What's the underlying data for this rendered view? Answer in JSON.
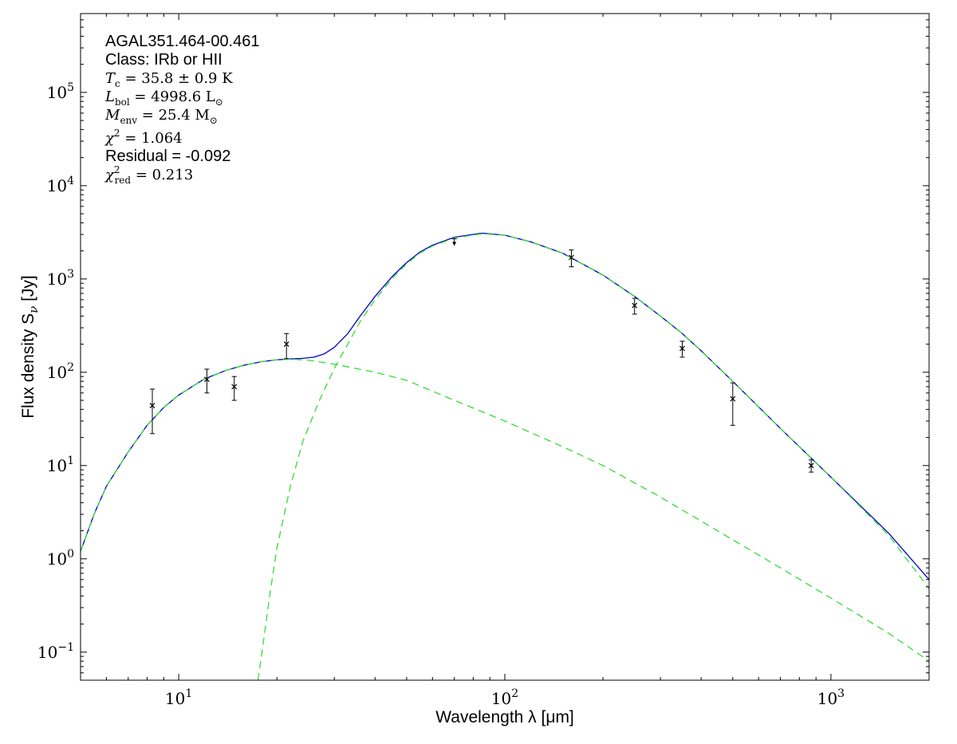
{
  "chart_data": {
    "type": "scatter",
    "xlabel": "Wavelength λ [μm]",
    "ylabel": "Flux density S",
    "ylabel_sub": "ν",
    "ylabel_unit": " [Jy]",
    "xscale": "log",
    "yscale": "log",
    "xlim": [
      5,
      2000
    ],
    "ylim": [
      0.05,
      700000
    ],
    "grid": false,
    "x_ticks": [
      {
        "value": 10,
        "base": "10",
        "exp": "1"
      },
      {
        "value": 100,
        "base": "10",
        "exp": "2"
      },
      {
        "value": 1000,
        "base": "10",
        "exp": "3"
      }
    ],
    "y_ticks": [
      {
        "value": 0.1,
        "base": "10",
        "exp": "−1"
      },
      {
        "value": 1,
        "base": "10",
        "exp": "0"
      },
      {
        "value": 10,
        "base": "10",
        "exp": "1"
      },
      {
        "value": 100,
        "base": "10",
        "exp": "2"
      },
      {
        "value": 1000,
        "base": "10",
        "exp": "3"
      },
      {
        "value": 10000,
        "base": "10",
        "exp": "4"
      },
      {
        "value": 100000,
        "base": "10",
        "exp": "5"
      }
    ],
    "annotations": [
      {
        "style": "sans",
        "text": "AGAL351.464-00.461"
      },
      {
        "style": "sans",
        "text": "Class: IRb or HII"
      },
      {
        "style": "math",
        "sym": "T",
        "sub": "c",
        "rest": " = 35.8 ± 0.9 K"
      },
      {
        "style": "math",
        "sym": "L",
        "sub": "bol",
        "rest": " = 4998.6 L",
        "tail_sub": "⊙"
      },
      {
        "style": "math",
        "sym": "M",
        "sub": "env",
        "rest": " = 25.4 M",
        "tail_sub": "⊙"
      },
      {
        "style": "math",
        "sym": "χ",
        "sup": "2",
        "rest": " = 1.064"
      },
      {
        "style": "sans",
        "text": "Residual = -0.092"
      },
      {
        "style": "math",
        "sym": "χ",
        "sup": "2",
        "sub": "red",
        "rest": " = 0.213"
      }
    ],
    "series": [
      {
        "marker": "x",
        "color": "#000000",
        "points": [
          {
            "x": 8.3,
            "y": 44,
            "ylo": 22,
            "yhi": 66
          },
          {
            "x": 12.2,
            "y": 84,
            "ylo": 60,
            "yhi": 108
          },
          {
            "x": 14.8,
            "y": 70,
            "ylo": 50,
            "yhi": 90
          },
          {
            "x": 21.4,
            "y": 200,
            "ylo": 140,
            "yhi": 260
          },
          {
            "x": 160,
            "y": 1700,
            "ylo": 1350,
            "yhi": 2050
          },
          {
            "x": 250,
            "y": 520,
            "ylo": 420,
            "yhi": 620
          },
          {
            "x": 350,
            "y": 180,
            "ylo": 145,
            "yhi": 215
          },
          {
            "x": 500,
            "y": 52,
            "ylo": 27,
            "yhi": 77
          },
          {
            "x": 870,
            "y": 10,
            "ylo": 8.5,
            "yhi": 11.5
          }
        ]
      },
      {
        "marker": "upper-limit",
        "color": "#000000",
        "points": [
          {
            "x": 70,
            "y": 2700,
            "ylo": 2350
          }
        ]
      },
      {
        "marker": "line",
        "color": "#0000cc",
        "style": "solid",
        "points": [
          {
            "x": 5,
            "y": 1.2
          },
          {
            "x": 5.5,
            "y": 3
          },
          {
            "x": 6,
            "y": 6
          },
          {
            "x": 7,
            "y": 14
          },
          {
            "x": 8,
            "y": 27
          },
          {
            "x": 9,
            "y": 42
          },
          {
            "x": 10,
            "y": 57
          },
          {
            "x": 12,
            "y": 85
          },
          {
            "x": 14,
            "y": 105
          },
          {
            "x": 16,
            "y": 120
          },
          {
            "x": 18,
            "y": 130
          },
          {
            "x": 20,
            "y": 136
          },
          {
            "x": 22,
            "y": 139
          },
          {
            "x": 24,
            "y": 141
          },
          {
            "x": 26,
            "y": 145
          },
          {
            "x": 28,
            "y": 158
          },
          {
            "x": 30,
            "y": 185
          },
          {
            "x": 33,
            "y": 260
          },
          {
            "x": 36,
            "y": 400
          },
          {
            "x": 40,
            "y": 650
          },
          {
            "x": 45,
            "y": 1050
          },
          {
            "x": 50,
            "y": 1500
          },
          {
            "x": 55,
            "y": 1950
          },
          {
            "x": 60,
            "y": 2300
          },
          {
            "x": 70,
            "y": 2800
          },
          {
            "x": 85,
            "y": 3100
          },
          {
            "x": 100,
            "y": 2950
          },
          {
            "x": 120,
            "y": 2500
          },
          {
            "x": 150,
            "y": 1900
          },
          {
            "x": 200,
            "y": 1100
          },
          {
            "x": 250,
            "y": 650
          },
          {
            "x": 300,
            "y": 400
          },
          {
            "x": 350,
            "y": 260
          },
          {
            "x": 400,
            "y": 170
          },
          {
            "x": 500,
            "y": 80
          },
          {
            "x": 700,
            "y": 25
          },
          {
            "x": 870,
            "y": 12
          },
          {
            "x": 1000,
            "y": 7.5
          },
          {
            "x": 1500,
            "y": 1.9
          },
          {
            "x": 2000,
            "y": 0.6
          }
        ]
      },
      {
        "marker": "line",
        "color": "#33dd33",
        "style": "dashed",
        "points": [
          {
            "x": 5,
            "y": 1.2
          },
          {
            "x": 5.5,
            "y": 3
          },
          {
            "x": 6,
            "y": 6
          },
          {
            "x": 7,
            "y": 14
          },
          {
            "x": 8,
            "y": 27
          },
          {
            "x": 9,
            "y": 42
          },
          {
            "x": 10,
            "y": 57
          },
          {
            "x": 12,
            "y": 85
          },
          {
            "x": 14,
            "y": 105
          },
          {
            "x": 16,
            "y": 120
          },
          {
            "x": 18,
            "y": 130
          },
          {
            "x": 20,
            "y": 136
          },
          {
            "x": 22,
            "y": 138
          },
          {
            "x": 25,
            "y": 135
          },
          {
            "x": 30,
            "y": 122
          },
          {
            "x": 40,
            "y": 100
          },
          {
            "x": 50,
            "y": 82
          },
          {
            "x": 70,
            "y": 50
          },
          {
            "x": 100,
            "y": 30
          },
          {
            "x": 150,
            "y": 16
          },
          {
            "x": 200,
            "y": 10
          },
          {
            "x": 300,
            "y": 4.6
          },
          {
            "x": 500,
            "y": 1.6
          },
          {
            "x": 700,
            "y": 0.8
          },
          {
            "x": 1000,
            "y": 0.38
          },
          {
            "x": 1500,
            "y": 0.16
          },
          {
            "x": 2000,
            "y": 0.08
          }
        ]
      },
      {
        "marker": "line",
        "color": "#33dd33",
        "style": "dashed",
        "points": [
          {
            "x": 17.5,
            "y": 0.05
          },
          {
            "x": 18,
            "y": 0.1
          },
          {
            "x": 19,
            "y": 0.4
          },
          {
            "x": 20,
            "y": 1.3
          },
          {
            "x": 22,
            "y": 6
          },
          {
            "x": 24,
            "y": 18
          },
          {
            "x": 27,
            "y": 50
          },
          {
            "x": 30,
            "y": 110
          },
          {
            "x": 33,
            "y": 200
          },
          {
            "x": 36,
            "y": 350
          },
          {
            "x": 40,
            "y": 600
          },
          {
            "x": 45,
            "y": 1000
          },
          {
            "x": 50,
            "y": 1450
          },
          {
            "x": 55,
            "y": 1900
          },
          {
            "x": 60,
            "y": 2250
          },
          {
            "x": 70,
            "y": 2750
          },
          {
            "x": 85,
            "y": 3050
          },
          {
            "x": 100,
            "y": 2950
          },
          {
            "x": 120,
            "y": 2500
          },
          {
            "x": 150,
            "y": 1900
          },
          {
            "x": 200,
            "y": 1100
          },
          {
            "x": 250,
            "y": 650
          },
          {
            "x": 300,
            "y": 400
          },
          {
            "x": 350,
            "y": 260
          },
          {
            "x": 400,
            "y": 170
          },
          {
            "x": 500,
            "y": 80
          },
          {
            "x": 700,
            "y": 25
          },
          {
            "x": 870,
            "y": 12
          },
          {
            "x": 1000,
            "y": 7.5
          },
          {
            "x": 1500,
            "y": 1.8
          },
          {
            "x": 2000,
            "y": 0.48
          }
        ]
      }
    ]
  }
}
